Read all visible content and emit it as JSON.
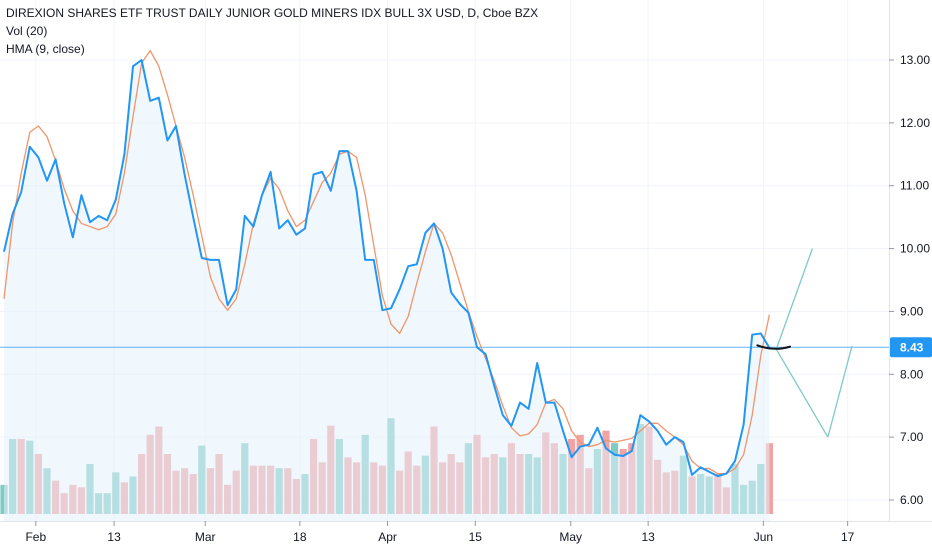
{
  "legend": {
    "title": "DIREXION SHARES ETF TRUST DAILY JUNIOR GOLD MINERS IDX BULL 3X USD, D, Cboe BZX",
    "volume": "Vol (20)",
    "hma": "HMA (9, close)"
  },
  "price_label": "8.43",
  "colors": {
    "price_line": "#2196f3",
    "hma_line": "#f0956a",
    "area_fill": "#e3f0fc",
    "volume_up": "#7fcac3",
    "volume_down": "#f0a3a2",
    "price_marker": "#2196f3",
    "projection": "#7fcac3",
    "black_curve": "#131722",
    "grid": "#f0f3fa",
    "axis_text": "#131722"
  },
  "chart_data": {
    "type": "line",
    "y_axis": {
      "ticks": [
        6.0,
        7.0,
        8.0,
        9.0,
        10.0,
        11.0,
        12.0,
        13.0
      ],
      "tick_labels": [
        "6.00",
        "7.00",
        "8.00",
        "9.00",
        "10.00",
        "11.00",
        "12.00",
        "13.00"
      ],
      "ylim": [
        5.7,
        13.6
      ]
    },
    "x_axis": {
      "tick_labels": [
        "Feb",
        "13",
        "Mar",
        "18",
        "Apr",
        "15",
        "May",
        "13",
        "Jun",
        "17"
      ],
      "tick_index": [
        3.7,
        12.8,
        23.4,
        34.4,
        44.6,
        54.8,
        65.9,
        74.9,
        88.3,
        98.1
      ]
    },
    "last_price": 8.43,
    "series": [
      {
        "name": "Close",
        "values": [
          9.95,
          10.55,
          10.9,
          11.62,
          11.45,
          11.08,
          11.42,
          10.72,
          10.18,
          10.85,
          10.42,
          10.52,
          10.45,
          10.78,
          11.5,
          12.9,
          13.0,
          12.35,
          12.4,
          11.72,
          11.95,
          11.18,
          10.5,
          9.85,
          9.82,
          9.82,
          9.1,
          9.35,
          10.52,
          10.35,
          10.85,
          11.22,
          10.32,
          10.45,
          10.22,
          10.32,
          11.18,
          11.22,
          10.92,
          11.55,
          11.55,
          10.92,
          9.82,
          9.82,
          9.02,
          9.05,
          9.35,
          9.72,
          9.75,
          10.25,
          10.4,
          10.0,
          9.3,
          9.12,
          8.98,
          8.43,
          8.32,
          7.82,
          7.35,
          7.18,
          7.55,
          7.45,
          8.18,
          7.55,
          7.55,
          7.1,
          6.68,
          6.85,
          6.88,
          7.15,
          6.82,
          6.72,
          6.7,
          6.78,
          7.35,
          7.25,
          7.1,
          6.88,
          7.0,
          6.92,
          6.4,
          6.52,
          6.45,
          6.38,
          6.42,
          6.62,
          7.2,
          8.63,
          8.65,
          8.42
        ]
      },
      {
        "name": "HMA (9, close)",
        "values": [
          9.2,
          10.4,
          11.2,
          11.85,
          11.95,
          11.78,
          11.4,
          10.95,
          10.6,
          10.4,
          10.35,
          10.3,
          10.35,
          10.55,
          11.2,
          12.1,
          12.95,
          13.15,
          12.9,
          12.45,
          11.95,
          11.45,
          10.85,
          10.2,
          9.55,
          9.2,
          9.02,
          9.2,
          9.75,
          10.4,
          10.85,
          11.12,
          10.95,
          10.6,
          10.35,
          10.45,
          10.75,
          11.05,
          11.2,
          11.5,
          11.55,
          11.45,
          10.85,
          10.05,
          9.25,
          8.8,
          8.65,
          8.92,
          9.45,
          9.95,
          10.4,
          10.25,
          9.9,
          9.45,
          9.0,
          8.6,
          8.25,
          7.9,
          7.5,
          7.15,
          7.02,
          7.05,
          7.2,
          7.55,
          7.6,
          7.45,
          7.1,
          6.92,
          6.85,
          6.88,
          6.95,
          6.92,
          6.95,
          6.98,
          7.1,
          7.22,
          7.22,
          7.1,
          7.0,
          6.88,
          6.62,
          6.5,
          6.5,
          6.42,
          6.42,
          6.5,
          6.72,
          7.35,
          8.3,
          8.95
        ]
      }
    ],
    "volume": {
      "up": [
        true,
        true,
        false,
        true,
        false,
        true,
        false,
        false,
        false,
        false,
        true,
        true,
        true,
        true,
        false,
        true,
        false,
        false,
        false,
        false,
        false,
        false,
        false,
        true,
        false,
        false,
        false,
        false,
        true,
        false,
        false,
        false,
        true,
        false,
        false,
        true,
        false,
        false,
        false,
        true,
        false,
        false,
        true,
        false,
        false,
        true,
        false,
        false,
        false,
        true,
        false,
        false,
        false,
        false,
        true,
        false,
        false,
        false,
        true,
        false,
        false,
        true,
        true,
        false,
        false,
        true,
        false,
        false,
        false,
        true,
        false,
        true,
        false,
        false,
        true,
        false,
        false,
        false,
        false,
        true,
        false,
        true,
        true,
        false,
        false,
        true,
        true,
        true,
        true,
        false
      ],
      "values": [
        0.35,
        0.9,
        0.9,
        0.88,
        0.72,
        0.55,
        0.4,
        0.25,
        0.35,
        0.32,
        0.6,
        0.25,
        0.25,
        0.5,
        0.38,
        0.45,
        0.72,
        0.95,
        1.05,
        0.72,
        0.52,
        0.55,
        0.48,
        0.82,
        0.55,
        0.72,
        0.35,
        0.52,
        0.85,
        0.58,
        0.58,
        0.58,
        0.55,
        0.55,
        0.42,
        0.48,
        0.9,
        0.62,
        1.06,
        0.9,
        0.68,
        0.62,
        0.95,
        0.62,
        0.58,
        1.15,
        0.52,
        0.75,
        0.58,
        0.7,
        1.05,
        0.62,
        0.72,
        0.62,
        0.85,
        0.95,
        0.68,
        0.72,
        0.68,
        0.85,
        0.72,
        0.72,
        0.68,
        0.98,
        0.85,
        0.72,
        0.9,
        0.95,
        0.55,
        0.78,
        1.0,
        0.85,
        0.78,
        0.85,
        1.08,
        1.05,
        0.65,
        0.5,
        0.52,
        0.7,
        0.45,
        0.48,
        0.45,
        0.48,
        0.32,
        0.6,
        0.35,
        0.4,
        0.6,
        0.85
      ]
    },
    "projection": {
      "values_x_index": [
        89.8,
        94.0,
        95.8,
        98.6
      ],
      "values_y": [
        8.4,
        10.0,
        7.0,
        8.45
      ],
      "segments": [
        [
          89.8,
          8.4,
          94.0,
          10.0
        ],
        [
          89.8,
          8.4,
          95.8,
          7.0
        ],
        [
          95.8,
          7.0,
          98.6,
          8.45
        ]
      ]
    },
    "curve": {
      "x_index": [
        87.6,
        89.6,
        91.4
      ],
      "values": [
        8.46,
        8.41,
        8.44
      ]
    }
  }
}
